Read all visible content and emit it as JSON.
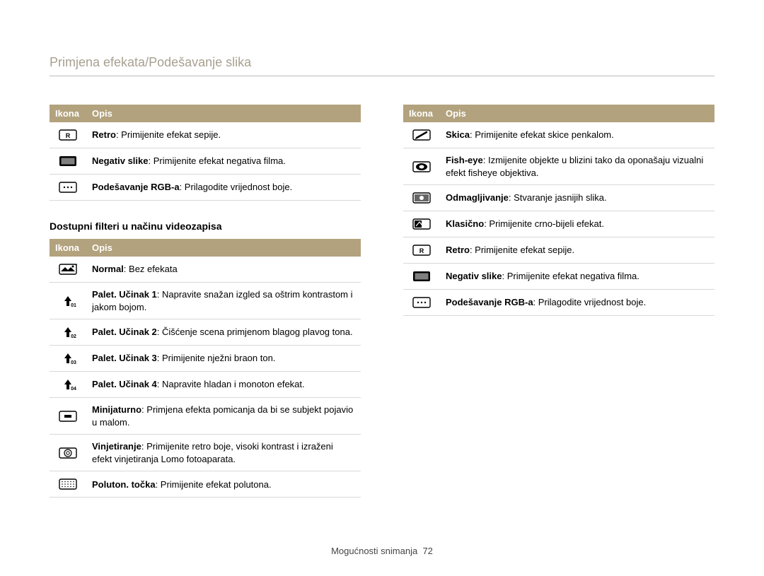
{
  "page_title": "Primjena efekata/Podešavanje slika",
  "headers": {
    "icon": "Ikona",
    "desc": "Opis"
  },
  "table1": {
    "rows": [
      {
        "icon": "retro",
        "b": "Retro",
        "t": ": Primijenite efekat sepije."
      },
      {
        "icon": "neg",
        "b": "Negativ slike",
        "t": ": Primijenite efekat negativa filma."
      },
      {
        "icon": "rgb",
        "b": "Podešavanje RGB-a",
        "t": ": Prilagodite vrijednost boje."
      }
    ]
  },
  "subheading": "Dostupni filteri u načinu videozapisa",
  "table2": {
    "rows": [
      {
        "icon": "normal",
        "b": "Normal",
        "t": ": Bez efekata"
      },
      {
        "icon": "pal1",
        "b": "Palet. Učinak 1",
        "t": ": Napravite snažan izgled sa oštrim kontrastom i jakom bojom."
      },
      {
        "icon": "pal2",
        "b": "Palet. Učinak 2",
        "t": ": Čišćenje scena primjenom blagog plavog tona."
      },
      {
        "icon": "pal3",
        "b": "Palet. Učinak 3",
        "t": ": Primijenite nježni braon ton."
      },
      {
        "icon": "pal4",
        "b": "Palet. Učinak 4",
        "t": ": Napravite hladan i monoton efekat."
      },
      {
        "icon": "mini",
        "b": "Minijaturno",
        "t": ": Primjena efekta pomicanja da bi se subjekt pojavio u malom."
      },
      {
        "icon": "vign",
        "b": "Vinjetiranje",
        "t": ": Primijenite retro boje, visoki kontrast i izraženi efekt vinjetiranja Lomo fotoaparata."
      },
      {
        "icon": "half",
        "b": "Poluton. točka",
        "t": ": Primijenite efekat polutona."
      }
    ]
  },
  "table3": {
    "rows": [
      {
        "icon": "sketch",
        "b": "Skica",
        "t": ": Primijenite efekat skice penkalom."
      },
      {
        "icon": "fish",
        "b": "Fish-eye",
        "t": ": Izmijenite objekte u blizini tako da oponašaju vizualni efekt fisheye objektiva."
      },
      {
        "icon": "defog",
        "b": "Odmagljivanje",
        "t": ": Stvaranje jasnijih slika."
      },
      {
        "icon": "classic",
        "b": "Klasično",
        "t": ": Primijenite crno-bijeli efekat."
      },
      {
        "icon": "retro",
        "b": "Retro",
        "t": ": Primijenite efekat sepije."
      },
      {
        "icon": "neg",
        "b": "Negativ slike",
        "t": ": Primijenite efekat negativa filma."
      },
      {
        "icon": "rgb",
        "b": "Podešavanje RGB-a",
        "t": ": Prilagodite vrijednost boje."
      }
    ]
  },
  "footer": {
    "section": "Mogućnosti snimanja",
    "page": "72"
  },
  "colors": {
    "title": "#a8a090",
    "header_bg": "#b2a27d",
    "header_fg": "#ffffff",
    "row_border": "#d8d8d8"
  },
  "icons": {
    "retro": "<svg viewBox='0 0 26 20'><rect x='1' y='3' width='24' height='14' rx='2' fill='none' stroke='#000' stroke-width='1.4'/><text x='13' y='14' text-anchor='middle' font-size='9' font-family='Arial' font-weight='bold'>R</text></svg>",
    "neg": "<svg viewBox='0 0 26 20'><rect x='1' y='3' width='24' height='14' rx='2' fill='#000'/><rect x='3.5' y='5.5' width='19' height='9' fill='#fff'/><rect x='3.5' y='5.5' width='19' height='9' fill='#000' opacity='0.5'/></svg>",
    "rgb": "<svg viewBox='0 0 26 20'><rect x='1' y='3' width='24' height='14' rx='2' fill='none' stroke='#000' stroke-width='1.4'/><circle cx='8' cy='10' r='1.2' fill='#000'/><circle cx='13' cy='10' r='1.2' fill='#000'/><circle cx='18' cy='10' r='1.2' fill='#000'/></svg>",
    "normal": "<svg viewBox='0 0 26 20'><rect x='1' y='3' width='24' height='14' rx='2' fill='none' stroke='#000' stroke-width='1.4'/><path d='M3 13 L9 7 L13 11 L17 7 L23 13 Z' fill='#000'/><circle cx='20' cy='6' r='1.5' fill='#000'/><text x='23' y='6' font-size='7' font-weight='bold'>+</text></svg>",
    "pal1": "<svg viewBox='0 0 26 20'><path d='M13 3 L8 10 L11 10 L11 17 L15 17 L15 10 L18 10 Z' fill='#000'/><text x='21' y='18' font-size='7' font-weight='bold' text-anchor='middle'>01</text></svg>",
    "pal2": "<svg viewBox='0 0 26 20'><path d='M13 3 L8 10 L11 10 L11 17 L15 17 L15 10 L18 10 Z' fill='#000'/><text x='21' y='18' font-size='7' font-weight='bold' text-anchor='middle'>02</text></svg>",
    "pal3": "<svg viewBox='0 0 26 20'><path d='M13 3 L8 10 L11 10 L11 17 L15 17 L15 10 L18 10 Z' fill='#000'/><text x='21' y='18' font-size='7' font-weight='bold' text-anchor='middle'>03</text></svg>",
    "pal4": "<svg viewBox='0 0 26 20'><path d='M13 3 L8 10 L11 10 L11 17 L15 17 L15 10 L18 10 Z' fill='#000'/><text x='21' y='18' font-size='7' font-weight='bold' text-anchor='middle'>04</text></svg>",
    "mini": "<svg viewBox='0 0 26 20'><rect x='1' y='3' width='24' height='14' rx='2' fill='none' stroke='#000' stroke-width='1.4'/><rect x='8' y='8' width='10' height='4' fill='#000'/></svg>",
    "vign": "<svg viewBox='0 0 26 20'><rect x='1' y='3' width='24' height='14' rx='2' fill='none' stroke='#000' stroke-width='1.4'/><circle cx='13' cy='10' r='5' fill='none' stroke='#000' stroke-width='1.2'/><circle cx='13' cy='10' r='2.2' fill='none' stroke='#000' stroke-width='1'/></svg>",
    "half": "<svg viewBox='0 0 26 20'><rect x='1' y='3' width='24' height='14' rx='2' fill='none' stroke='#000' stroke-width='1.4'/><g fill='#000'><circle cx='5' cy='6.5' r='0.8'/><circle cx='9' cy='6.5' r='0.8'/><circle cx='13' cy='6.5' r='0.8'/><circle cx='17' cy='6.5' r='0.8'/><circle cx='21' cy='6.5' r='0.8'/><circle cx='5' cy='10' r='0.8'/><circle cx='9' cy='10' r='0.8'/><circle cx='13' cy='10' r='0.8'/><circle cx='17' cy='10' r='0.8'/><circle cx='21' cy='10' r='0.8'/><circle cx='5' cy='13.5' r='0.8'/><circle cx='9' cy='13.5' r='0.8'/><circle cx='13' cy='13.5' r='0.8'/><circle cx='17' cy='13.5' r='0.8'/><circle cx='21' cy='13.5' r='0.8'/></g></svg>",
    "sketch": "<svg viewBox='0 0 26 20'><rect x='1' y='3' width='24' height='14' rx='2' fill='none' stroke='#000' stroke-width='1.4'/><path d='M6 14 L20 6' stroke='#000' stroke-width='2.5' stroke-linecap='round'/><path d='M6 14 L4 16' stroke='#000' stroke-width='1'/></svg>",
    "fish": "<svg viewBox='0 0 26 20'><rect x='1' y='3' width='24' height='14' rx='2' fill='none' stroke='#000' stroke-width='1.4'/><ellipse cx='13' cy='10' rx='8' ry='5' fill='#000'/><ellipse cx='13' cy='10' rx='3.5' ry='2.5' fill='#fff'/></svg>",
    "defog": "<svg viewBox='0 0 26 20'><rect x='1' y='3' width='24' height='14' rx='2' fill='none' stroke='#000' stroke-width='1.4'/><rect x='3' y='5' width='20' height='10' fill='#000' opacity='0.6'/><circle cx='13' cy='10' r='3' fill='#fff'/></svg>",
    "classic": "<svg viewBox='0 0 26 20'><rect x='1' y='3' width='24' height='14' rx='2' fill='none' stroke='#000' stroke-width='1.4'/><rect x='3' y='5' width='10' height='10' fill='#000'/><path d='M5 13 L10 7 L14 12' fill='none' stroke='#fff' stroke-width='1.2'/></svg>"
  }
}
